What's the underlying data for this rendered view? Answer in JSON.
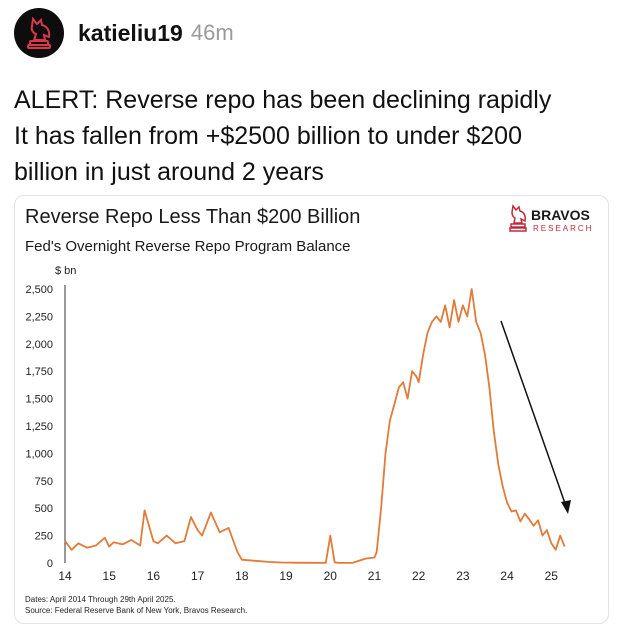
{
  "post": {
    "username": "katieliu19",
    "time": "46m",
    "text_lines": [
      "ALERT: Reverse repo has been declining rapidly",
      "It has fallen from +$2500 billion to under $200",
      "billion in just around 2 years"
    ]
  },
  "brand": {
    "name": "BRAVOS",
    "sub": "RESEARCH",
    "color": "#c0283a"
  },
  "chart_data": {
    "type": "line",
    "title": "Reverse Repo Less Than $200 Billion",
    "subtitle": "Fed's Overnight Reverse Repo Program Balance",
    "ylabel": "$ bn",
    "ylim": [
      0,
      2500
    ],
    "xlim": [
      2014.0,
      2025.4
    ],
    "yticks": [
      0,
      250,
      500,
      750,
      1000,
      1250,
      1500,
      1750,
      2000,
      2250,
      2500
    ],
    "ytick_labels": [
      "0",
      "250",
      "500",
      "750",
      "1,000",
      "1,250",
      "1,500",
      "1,750",
      "2,000",
      "2,250",
      "2,500"
    ],
    "xticks": [
      2014,
      2015,
      2016,
      2017,
      2018,
      2019,
      2020,
      2021,
      2022,
      2023,
      2024,
      2025
    ],
    "xtick_labels": [
      "14",
      "15",
      "16",
      "17",
      "18",
      "19",
      "20",
      "21",
      "22",
      "23",
      "24",
      "25"
    ],
    "line_color": "#e07b39",
    "grid": false,
    "series": [
      {
        "x": [
          2014.0,
          2014.15,
          2014.3,
          2014.5,
          2014.7,
          2014.9,
          2015.0,
          2015.1,
          2015.3,
          2015.5,
          2015.7,
          2015.8,
          2016.0,
          2016.1,
          2016.3,
          2016.5,
          2016.7,
          2016.85,
          2017.0,
          2017.1,
          2017.3,
          2017.5,
          2017.7,
          2017.9,
          2018.0,
          2018.3,
          2018.6,
          2018.9,
          2019.2,
          2019.6,
          2019.9,
          2020.0,
          2020.1,
          2020.2,
          2020.5,
          2020.8,
          2021.0,
          2021.05,
          2021.15,
          2021.25,
          2021.35,
          2021.45,
          2021.55,
          2021.65,
          2021.75,
          2021.85,
          2021.95,
          2022.0,
          2022.1,
          2022.2,
          2022.3,
          2022.4,
          2022.5,
          2022.6,
          2022.7,
          2022.8,
          2022.9,
          2023.0,
          2023.1,
          2023.2,
          2023.3,
          2023.4,
          2023.5,
          2023.6,
          2023.7,
          2023.8,
          2023.9,
          2024.0,
          2024.1,
          2024.2,
          2024.3,
          2024.4,
          2024.5,
          2024.6,
          2024.7,
          2024.8,
          2024.9,
          2025.0,
          2025.1,
          2025.2,
          2025.3
        ],
        "y": [
          200,
          120,
          180,
          140,
          160,
          230,
          150,
          190,
          170,
          210,
          160,
          480,
          200,
          180,
          250,
          180,
          200,
          420,
          300,
          250,
          460,
          280,
          320,
          100,
          30,
          20,
          10,
          5,
          3,
          2,
          1,
          250,
          5,
          2,
          1,
          40,
          50,
          100,
          500,
          1000,
          1300,
          1450,
          1600,
          1650,
          1500,
          1750,
          1700,
          1650,
          1900,
          2100,
          2200,
          2250,
          2200,
          2350,
          2150,
          2400,
          2200,
          2350,
          2250,
          2500,
          2200,
          2100,
          1900,
          1600,
          1200,
          900,
          700,
          550,
          470,
          480,
          380,
          450,
          400,
          340,
          390,
          250,
          300,
          180,
          120,
          250,
          150
        ]
      }
    ],
    "annotation": "trend arrow pointing down",
    "footnote_lines": [
      "Dates: April 2014 Through 29th April 2025.",
      "Source: Federal Reserve Bank of New York, Bravos Research."
    ]
  }
}
